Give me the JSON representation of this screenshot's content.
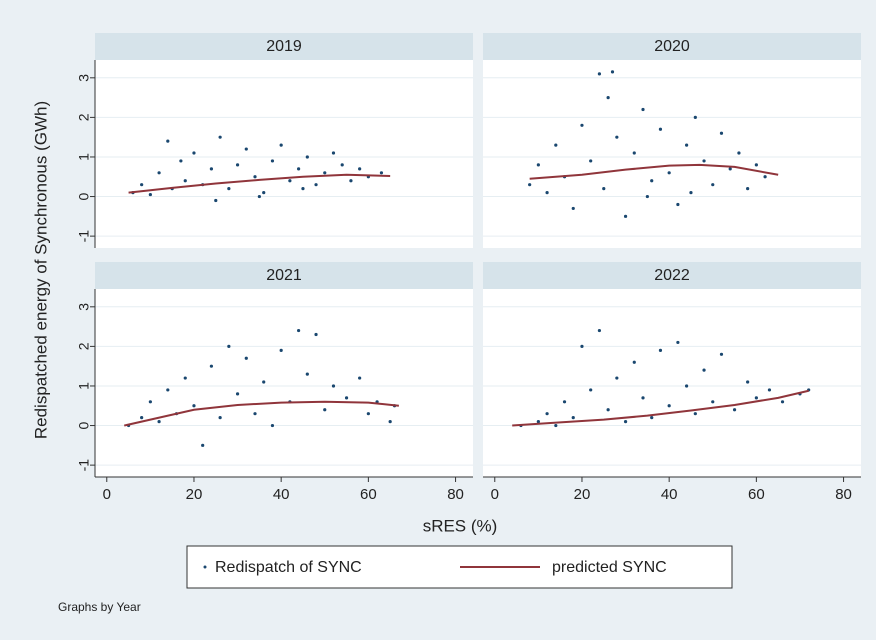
{
  "y_label": "Redispatched energy of Synchronous (GWh)",
  "x_label": "sRES (%)",
  "note": "Graphs by Year",
  "legend": [
    {
      "name": "Redispatch of SYNC",
      "color": "#1a476f"
    },
    {
      "name": "predicted SYNC",
      "color": "#90353b"
    }
  ],
  "chart_data": [
    {
      "type": "scatter",
      "title": "2019",
      "xlim": [
        -2.7,
        84
      ],
      "ylim": [
        -1.3,
        3.45
      ],
      "yticks": [
        -1,
        0,
        1,
        2,
        3
      ],
      "grid": true,
      "series": [
        {
          "color": "#1a476f",
          "x": [
            6,
            8,
            10,
            12,
            14,
            15,
            17,
            18,
            20,
            22,
            24,
            26,
            28,
            30,
            32,
            34,
            36,
            38,
            40,
            42,
            44,
            46,
            48,
            50,
            52,
            54,
            56,
            58,
            60,
            63,
            25,
            35,
            45
          ],
          "values": [
            0.1,
            0.3,
            0.05,
            0.6,
            1.4,
            0.2,
            0.9,
            0.4,
            1.1,
            0.3,
            0.7,
            1.5,
            0.2,
            0.8,
            1.2,
            0.5,
            0.1,
            0.9,
            1.3,
            0.4,
            0.7,
            1.0,
            0.3,
            0.6,
            1.1,
            0.8,
            0.4,
            0.7,
            0.5,
            0.6,
            -0.1,
            0.0,
            0.2
          ]
        },
        {
          "type": "line",
          "color": "#90353b",
          "x": [
            5,
            15,
            25,
            35,
            45,
            55,
            65
          ],
          "values": [
            0.1,
            0.22,
            0.33,
            0.42,
            0.5,
            0.55,
            0.52
          ]
        }
      ]
    },
    {
      "type": "scatter",
      "title": "2020",
      "xlim": [
        -2.7,
        84
      ],
      "ylim": [
        -1.3,
        3.45
      ],
      "yticks": [
        -1,
        0,
        1,
        2,
        3
      ],
      "grid": true,
      "series": [
        {
          "color": "#1a476f",
          "x": [
            8,
            10,
            12,
            14,
            16,
            18,
            20,
            22,
            24,
            25,
            26,
            28,
            30,
            32,
            34,
            36,
            38,
            40,
            42,
            44,
            46,
            48,
            50,
            52,
            54,
            56,
            58,
            60,
            62,
            27,
            35,
            45
          ],
          "values": [
            0.3,
            0.8,
            0.1,
            1.3,
            0.5,
            -0.3,
            1.8,
            0.9,
            3.1,
            0.2,
            2.5,
            1.5,
            -0.5,
            1.1,
            2.2,
            0.4,
            1.7,
            0.6,
            -0.2,
            1.3,
            2.0,
            0.9,
            0.3,
            1.6,
            0.7,
            1.1,
            0.2,
            0.8,
            0.5,
            3.15,
            0.0,
            0.1
          ]
        },
        {
          "type": "line",
          "color": "#90353b",
          "x": [
            8,
            20,
            30,
            40,
            47,
            55,
            65
          ],
          "values": [
            0.45,
            0.55,
            0.68,
            0.78,
            0.8,
            0.75,
            0.55
          ]
        }
      ]
    },
    {
      "type": "scatter",
      "title": "2021",
      "xlim": [
        -2.7,
        84
      ],
      "ylim": [
        -1.3,
        3.45
      ],
      "xticks": [
        0,
        20,
        40,
        60,
        80
      ],
      "yticks": [
        -1,
        0,
        1,
        2,
        3
      ],
      "grid": true,
      "series": [
        {
          "color": "#1a476f",
          "x": [
            5,
            8,
            10,
            12,
            14,
            16,
            18,
            20,
            22,
            24,
            26,
            28,
            30,
            32,
            34,
            36,
            38,
            40,
            42,
            44,
            46,
            48,
            50,
            52,
            55,
            58,
            60,
            62,
            65,
            66
          ],
          "values": [
            0,
            0.2,
            0.6,
            0.1,
            0.9,
            0.3,
            1.2,
            0.5,
            -0.5,
            1.5,
            0.2,
            2.0,
            0.8,
            1.7,
            0.3,
            1.1,
            0.0,
            1.9,
            0.6,
            2.4,
            1.3,
            2.3,
            0.4,
            1.0,
            0.7,
            1.2,
            0.3,
            0.6,
            0.1,
            0.5
          ]
        },
        {
          "type": "line",
          "color": "#90353b",
          "x": [
            4,
            10,
            20,
            30,
            40,
            50,
            60,
            67
          ],
          "values": [
            0,
            0.15,
            0.4,
            0.52,
            0.58,
            0.6,
            0.58,
            0.5
          ]
        }
      ]
    },
    {
      "type": "scatter",
      "title": "2022",
      "xlim": [
        -2.7,
        84
      ],
      "ylim": [
        -1.3,
        3.45
      ],
      "xticks": [
        0,
        20,
        40,
        60,
        80
      ],
      "yticks": [
        -1,
        0,
        1,
        2,
        3
      ],
      "grid": true,
      "series": [
        {
          "color": "#1a476f",
          "x": [
            6,
            10,
            12,
            14,
            16,
            18,
            20,
            22,
            24,
            26,
            28,
            30,
            32,
            34,
            36,
            38,
            40,
            42,
            44,
            46,
            48,
            50,
            52,
            55,
            58,
            60,
            63,
            66,
            70,
            72
          ],
          "values": [
            0,
            0.1,
            0.3,
            0.0,
            0.6,
            0.2,
            2.0,
            0.9,
            2.4,
            0.4,
            1.2,
            0.1,
            1.6,
            0.7,
            0.2,
            1.9,
            0.5,
            2.1,
            1.0,
            0.3,
            1.4,
            0.6,
            1.8,
            0.4,
            1.1,
            0.7,
            0.9,
            0.6,
            0.8,
            0.9
          ]
        },
        {
          "type": "line",
          "color": "#90353b",
          "x": [
            4,
            15,
            25,
            35,
            45,
            55,
            65,
            72
          ],
          "values": [
            0,
            0.08,
            0.15,
            0.25,
            0.38,
            0.52,
            0.7,
            0.88
          ]
        }
      ]
    }
  ]
}
